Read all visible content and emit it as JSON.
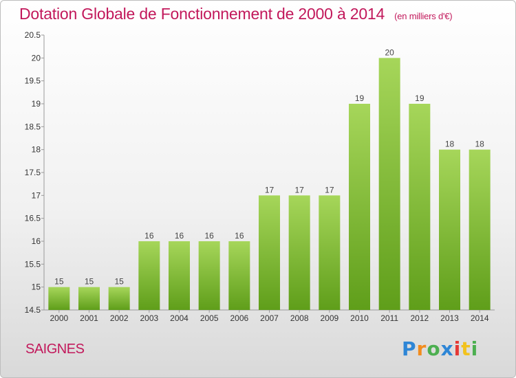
{
  "chart_data": {
    "type": "bar",
    "title": "Dotation Globale de Fonctionnement de 2000 à 2014",
    "subtitle": "(en milliers d'€)",
    "categories": [
      "2000",
      "2001",
      "2002",
      "2003",
      "2004",
      "2005",
      "2006",
      "2007",
      "2008",
      "2009",
      "2010",
      "2011",
      "2012",
      "2013",
      "2014"
    ],
    "values": [
      15,
      15,
      15,
      16,
      16,
      16,
      16,
      17,
      17,
      17,
      19,
      20,
      19,
      18,
      18
    ],
    "ylim": [
      14.5,
      20.5
    ],
    "yticks": [
      14.5,
      15,
      15.5,
      16,
      16.5,
      17,
      17.5,
      18,
      18.5,
      19,
      19.5,
      20,
      20.5
    ],
    "ytick_labels": [
      "14.5",
      "15",
      "15.5",
      "16",
      "16.5",
      "17",
      "17.5",
      "18",
      "18.5",
      "19",
      "19.5",
      "20",
      "20.5"
    ],
    "grid": false,
    "bar_color": "#7fc236"
  },
  "footer": {
    "commune": "SAIGNES",
    "brand": "Proxiti",
    "brand_colors": [
      "#2e86d6",
      "#f28c1e",
      "#4caf50",
      "#2e86d6",
      "#e53935",
      "#f2c21e",
      "#4caf50"
    ]
  }
}
